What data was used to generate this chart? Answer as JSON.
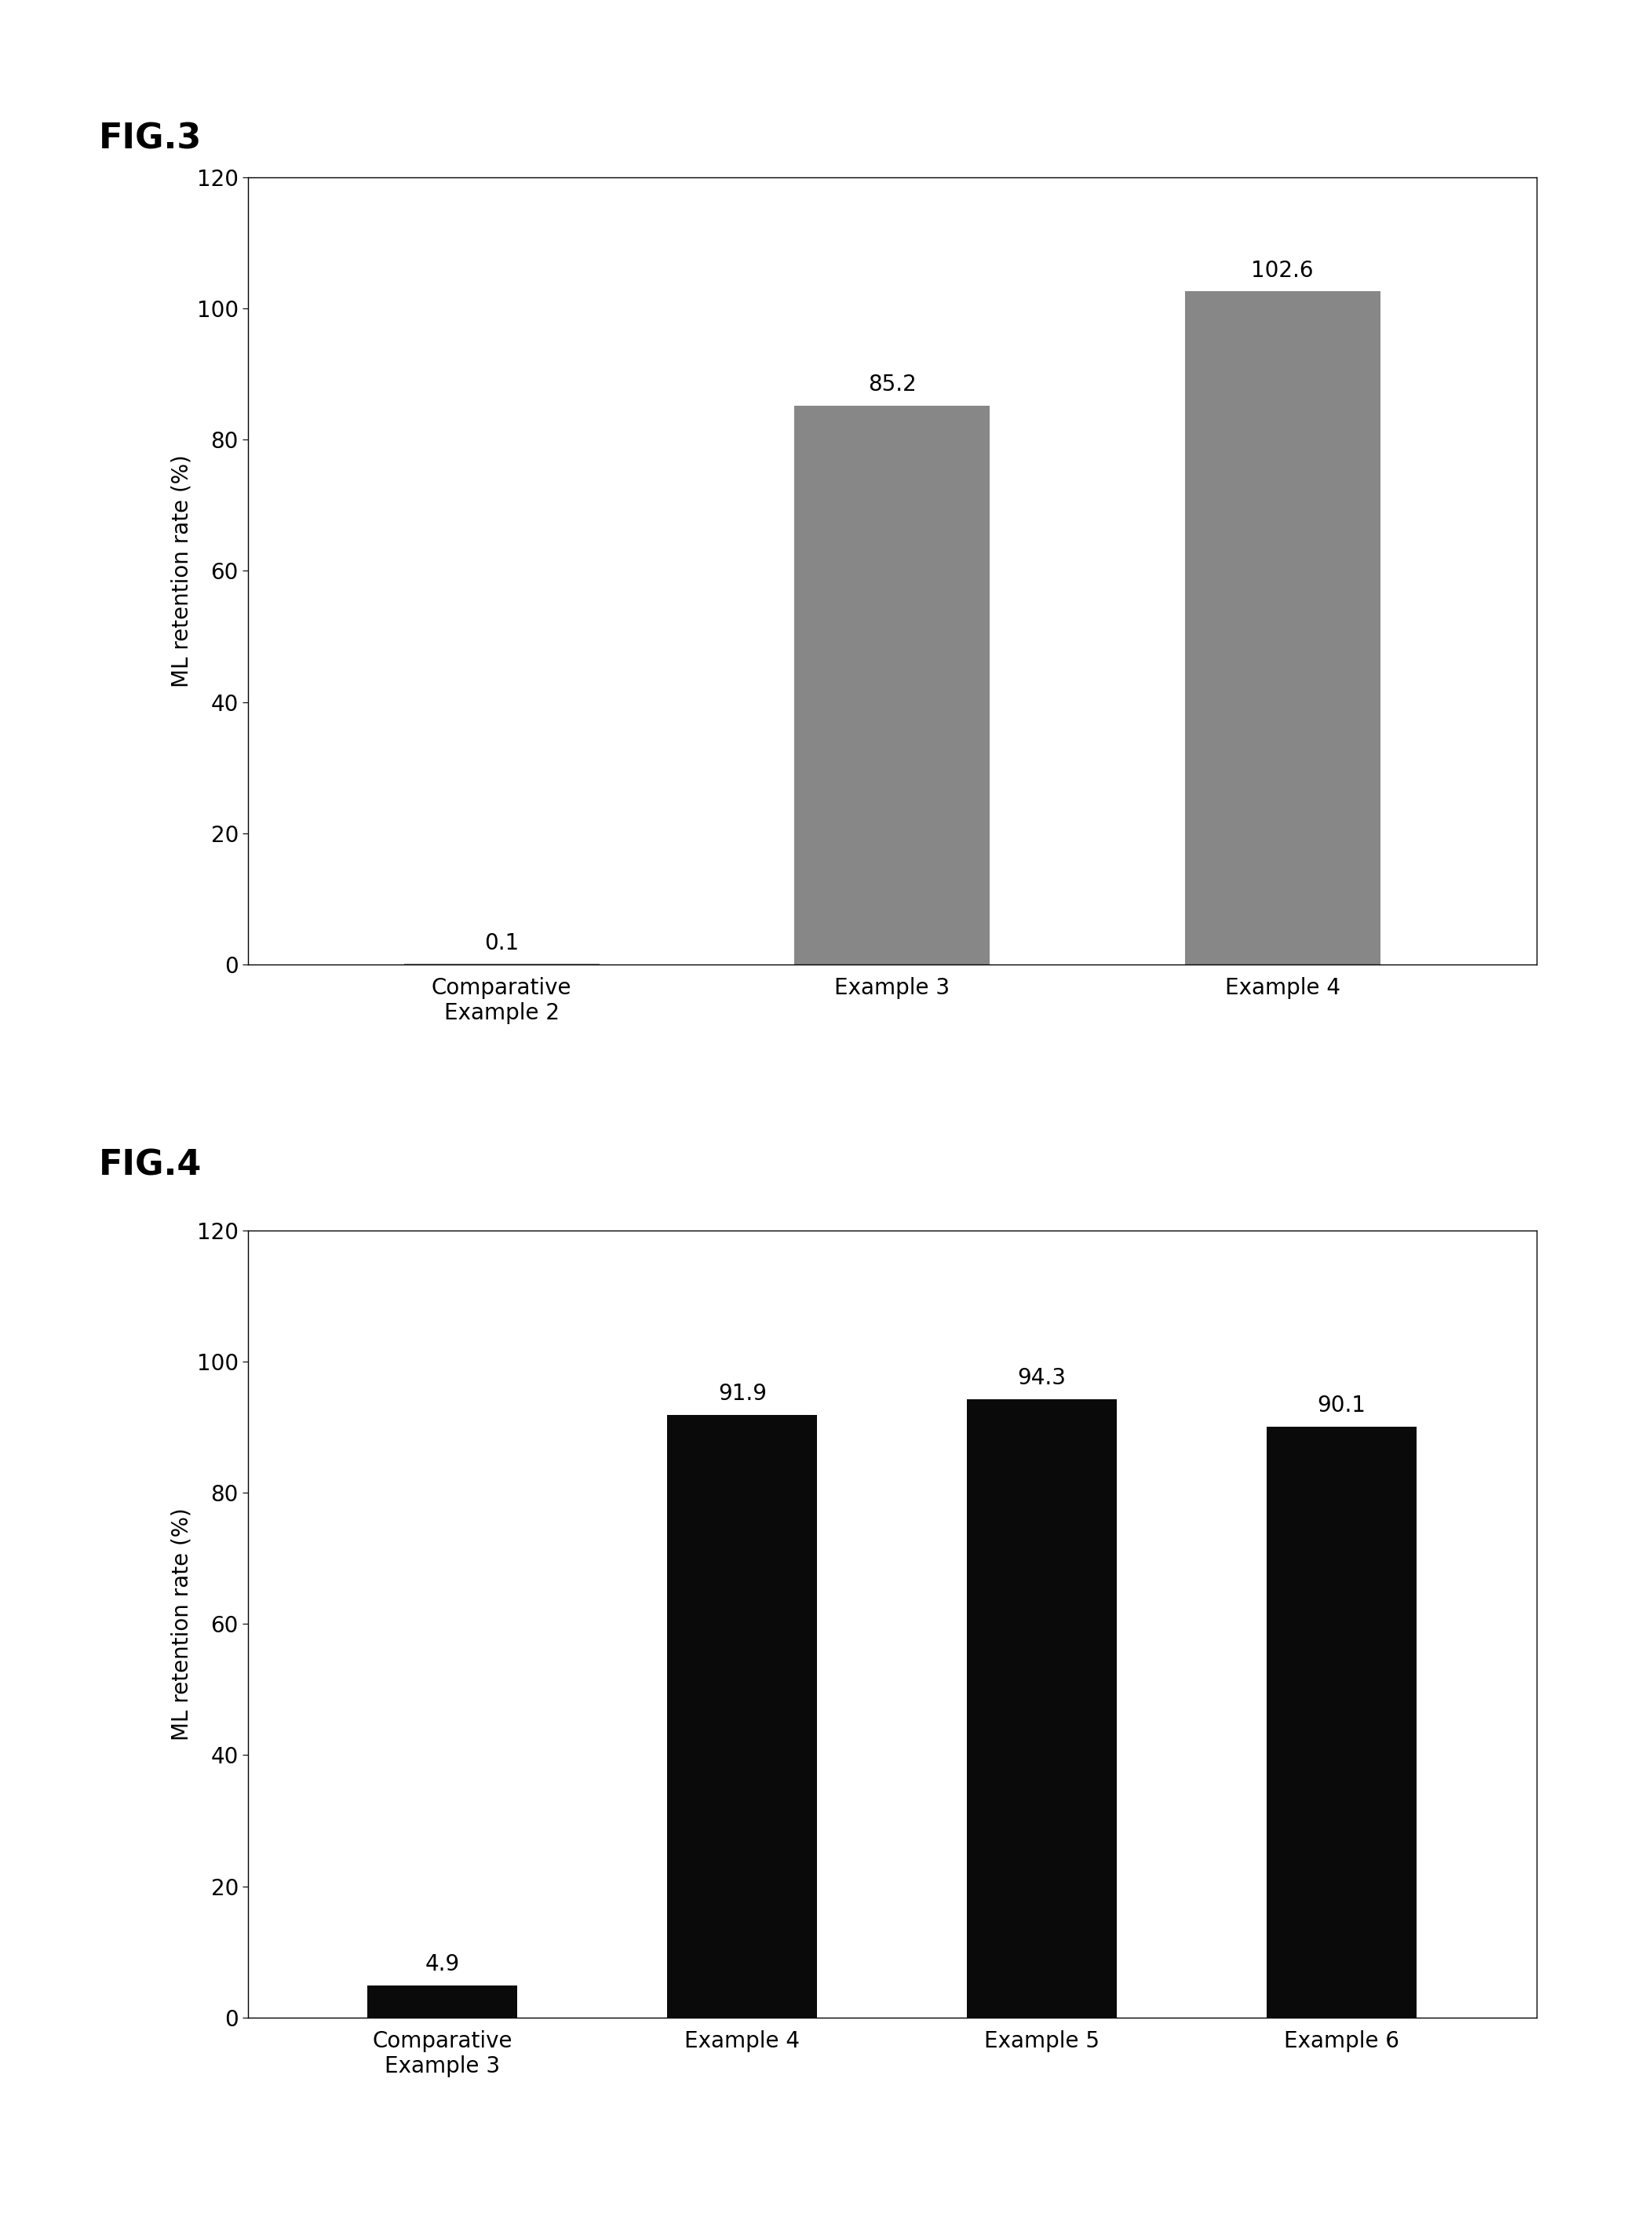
{
  "fig3": {
    "title": "FIG.3",
    "categories": [
      "Comparative\nExample 2",
      "Example 3",
      "Example 4"
    ],
    "values": [
      0.1,
      85.2,
      102.6
    ],
    "bar_color": "#878787",
    "hatch": "",
    "ylabel": "ML retention rate (%)",
    "ylim": [
      0,
      120
    ],
    "yticks": [
      0,
      20,
      40,
      60,
      80,
      100,
      120
    ],
    "value_labels": [
      "0.1",
      "85.2",
      "102.6"
    ]
  },
  "fig4": {
    "title": "FIG.4",
    "categories": [
      "Comparative\nExample 3",
      "Example 4",
      "Example 5",
      "Example 6"
    ],
    "values": [
      4.9,
      91.9,
      94.3,
      90.1
    ],
    "bar_color": "#0a0a0a",
    "hatch": "",
    "ylabel": "ML retention rate (%)",
    "ylim": [
      0,
      120
    ],
    "yticks": [
      0,
      20,
      40,
      60,
      80,
      100,
      120
    ],
    "value_labels": [
      "4.9",
      "91.9",
      "94.3",
      "90.1"
    ]
  },
  "background_color": "#ffffff",
  "title_fontsize": 32,
  "label_fontsize": 20,
  "tick_fontsize": 20,
  "value_fontsize": 20,
  "bar_width": 0.5
}
